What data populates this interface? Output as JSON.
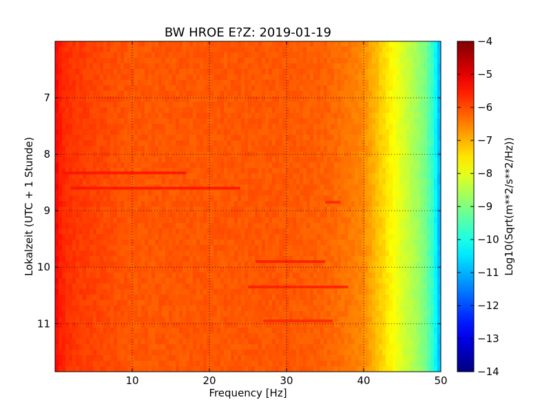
{
  "chart_data": {
    "type": "heatmap",
    "title": "BW HROE E?Z: 2019-01-19",
    "xlabel": "Frequency [Hz]",
    "ylabel": "Lokalzeit (UTC + 1 Stunde)",
    "xlim": [
      0,
      50
    ],
    "ylim": [
      6.0,
      11.85
    ],
    "y_inverted": true,
    "grid": true,
    "x_ticks": [
      10,
      20,
      30,
      40,
      50
    ],
    "x_tick_labels": [
      "10",
      "20",
      "30",
      "40",
      "50"
    ],
    "y_ticks": [
      7,
      8,
      9,
      10,
      11
    ],
    "y_tick_labels": [
      "7",
      "8",
      "9",
      "10",
      "11"
    ],
    "colorbar": {
      "label": "Log10(Sqrt(m**2/s**2/Hz))",
      "range": [
        -14,
        -4
      ],
      "colormap": "jet",
      "ticks": [
        -4,
        -5,
        -6,
        -7,
        -8,
        -9,
        -10,
        -11,
        -12,
        -13,
        -14
      ],
      "tick_labels": [
        "−4",
        "−5",
        "−6",
        "−7",
        "−8",
        "−9",
        "−10",
        "−11",
        "−12",
        "−13",
        "−14"
      ]
    },
    "frequency_profile": {
      "frequency_hz": [
        0,
        0.5,
        1.5,
        3,
        5,
        10,
        20,
        25,
        30,
        35,
        38,
        40,
        41,
        42,
        43,
        44,
        45,
        46,
        47,
        48,
        49,
        50
      ],
      "log10_amplitude": [
        -5.2,
        -5.5,
        -5.7,
        -5.8,
        -5.9,
        -6.1,
        -6.1,
        -6.1,
        -6.1,
        -6.2,
        -6.4,
        -6.6,
        -6.9,
        -7.2,
        -7.5,
        -7.8,
        -8.1,
        -8.4,
        -8.7,
        -9.1,
        -9.8,
        -11.2
      ]
    },
    "band_events": [
      {
        "time": 8.33,
        "f_start": 1,
        "f_end": 17,
        "log10_amplitude": -5.4
      },
      {
        "time": 8.6,
        "f_start": 2,
        "f_end": 24,
        "log10_amplitude": -5.4
      },
      {
        "time": 8.85,
        "f_start": 35,
        "f_end": 37,
        "log10_amplitude": -5.6
      },
      {
        "time": 9.9,
        "f_start": 26,
        "f_end": 35,
        "log10_amplitude": -5.5
      },
      {
        "time": 10.35,
        "f_start": 25,
        "f_end": 38,
        "log10_amplitude": -5.5
      },
      {
        "time": 10.95,
        "f_start": 27,
        "f_end": 36,
        "log10_amplitude": -5.6
      }
    ]
  }
}
